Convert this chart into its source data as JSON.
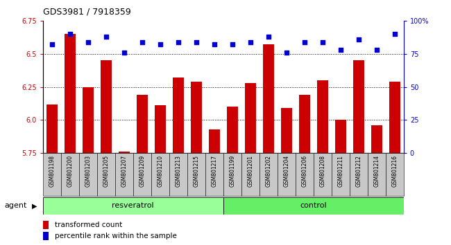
{
  "title": "GDS3981 / 7918359",
  "samples": [
    "GSM801198",
    "GSM801200",
    "GSM801203",
    "GSM801205",
    "GSM801207",
    "GSM801209",
    "GSM801210",
    "GSM801213",
    "GSM801215",
    "GSM801217",
    "GSM801199",
    "GSM801201",
    "GSM801202",
    "GSM801204",
    "GSM801206",
    "GSM801208",
    "GSM801211",
    "GSM801212",
    "GSM801214",
    "GSM801216"
  ],
  "bar_values": [
    6.12,
    6.65,
    6.25,
    6.45,
    5.76,
    6.19,
    6.11,
    6.32,
    6.29,
    5.93,
    6.1,
    6.28,
    6.57,
    6.09,
    6.19,
    6.3,
    6.0,
    6.45,
    5.96,
    6.29
  ],
  "percentile_values": [
    82,
    90,
    84,
    88,
    76,
    84,
    82,
    84,
    84,
    82,
    82,
    84,
    88,
    76,
    84,
    84,
    78,
    86,
    78,
    90
  ],
  "resveratrol_count": 10,
  "control_count": 10,
  "ylim_left": [
    5.75,
    6.75
  ],
  "ylim_right": [
    0,
    100
  ],
  "yticks_left": [
    5.75,
    6.0,
    6.25,
    6.5,
    6.75
  ],
  "yticks_right": [
    0,
    25,
    50,
    75,
    100
  ],
  "bar_color": "#CC0000",
  "percentile_color": "#0000CC",
  "resveratrol_color": "#99FF99",
  "control_color": "#66EE66",
  "tick_bg_color": "#C8C8C8",
  "agent_label": "agent",
  "resveratrol_label": "resveratrol",
  "control_label": "control",
  "legend_bar_label": "transformed count",
  "legend_pct_label": "percentile rank within the sample",
  "title_color": "#000000",
  "title_fontsize": 9,
  "bar_fontsize": 7,
  "label_fontsize": 8
}
